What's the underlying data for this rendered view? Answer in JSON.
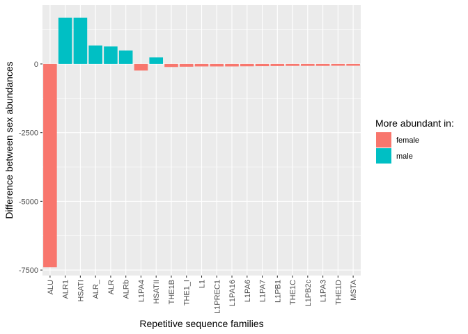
{
  "chart_data": {
    "type": "bar",
    "title": "",
    "xlabel": "Repetitive sequence families",
    "ylabel": "Difference between sex abundances",
    "categories": [
      "ALU",
      "ALR1",
      "HSATI",
      "ALR_",
      "ALR",
      "ALRb",
      "L1PA4",
      "HSATII",
      "THE1B",
      "THE1_I",
      "L1",
      "L1PREC1",
      "L1PA16",
      "L1PA6",
      "L1PA7",
      "L1PB1",
      "THE1C",
      "L1PB2c",
      "L1PA3",
      "THE1D",
      "MSTA"
    ],
    "values": [
      -7400,
      1680,
      1680,
      670,
      640,
      490,
      -240,
      240,
      -110,
      -100,
      -90,
      -90,
      -90,
      -85,
      -80,
      -75,
      -70,
      -70,
      -70,
      -65,
      -65
    ],
    "groups": [
      "female",
      "male",
      "male",
      "male",
      "male",
      "male",
      "female",
      "male",
      "female",
      "female",
      "female",
      "female",
      "female",
      "female",
      "female",
      "female",
      "female",
      "female",
      "female",
      "female",
      "female"
    ],
    "ylim": [
      -7700,
      2150
    ],
    "yticks": [
      0,
      -2500,
      -5000,
      -7500
    ],
    "ytick_labels": [
      "0",
      "-2500",
      "-5000",
      "-7500"
    ],
    "grid": true,
    "legend": {
      "title": "More abundant in:",
      "placement": "right",
      "entries": [
        {
          "name": "female",
          "color": "#F8766D"
        },
        {
          "name": "male",
          "color": "#00BFC4"
        }
      ]
    },
    "colors": {
      "female": "#F8766D",
      "male": "#00BFC4",
      "panel": "#EBEBEB",
      "grid": "#FFFFFF"
    }
  }
}
